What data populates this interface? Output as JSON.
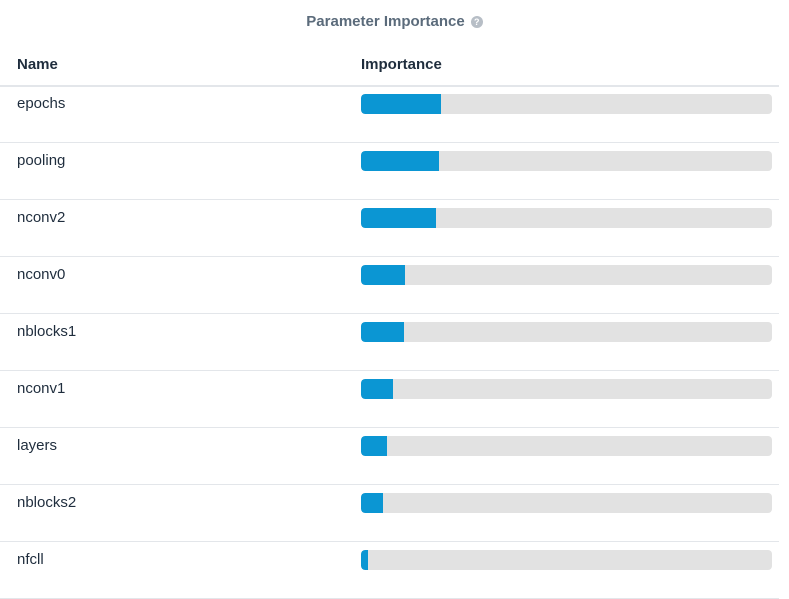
{
  "panel": {
    "title": "Parameter Importance",
    "help_icon": "question-circle-icon"
  },
  "table": {
    "headers": {
      "name": "Name",
      "importance": "Importance"
    },
    "rows": [
      {
        "name": "epochs",
        "importance": 0.195
      },
      {
        "name": "pooling",
        "importance": 0.19
      },
      {
        "name": "nconv2",
        "importance": 0.182
      },
      {
        "name": "nconv0",
        "importance": 0.107
      },
      {
        "name": "nblocks1",
        "importance": 0.105
      },
      {
        "name": "nconv1",
        "importance": 0.078
      },
      {
        "name": "layers",
        "importance": 0.063
      },
      {
        "name": "nblocks2",
        "importance": 0.053
      },
      {
        "name": "nfcll",
        "importance": 0.018
      }
    ]
  },
  "colors": {
    "bar_fill": "#0b96d3",
    "bar_track": "#e2e2e2",
    "title": "#5b6b7b",
    "text": "#1f2d3d"
  }
}
